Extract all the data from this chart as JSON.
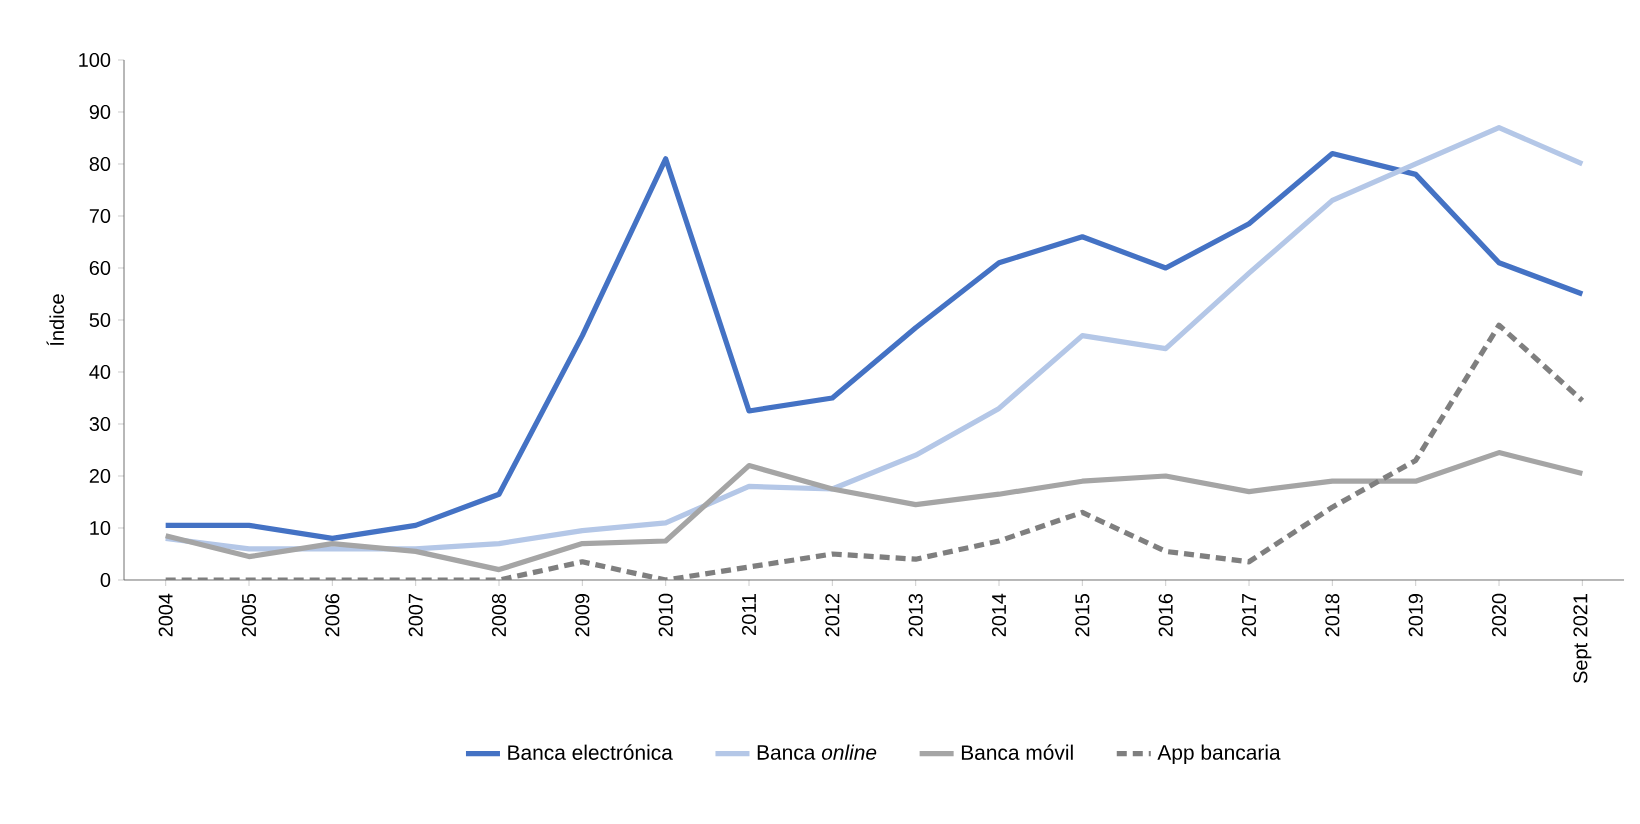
{
  "chart_data": {
    "type": "line",
    "ylabel": "Índice",
    "categories": [
      "2004",
      "2005",
      "2006",
      "2007",
      "2008",
      "2009",
      "2010",
      "2011",
      "2012",
      "2013",
      "2014",
      "2015",
      "2016",
      "2017",
      "2018",
      "2019",
      "2020",
      "Sept 2021"
    ],
    "series": [
      {
        "name": "Banca electrónica",
        "color": "#4472c4",
        "line_style": "solid",
        "values": [
          10.5,
          10.5,
          8,
          10.5,
          16.5,
          47,
          81,
          32.5,
          35,
          48.5,
          61,
          66,
          60,
          68.5,
          82,
          78,
          61,
          55
        ]
      },
      {
        "name": "Banca *online*",
        "color": "#b4c7e7",
        "line_style": "solid",
        "values": [
          8,
          6,
          6,
          6,
          7,
          9.5,
          11,
          18,
          17.5,
          24,
          33,
          47,
          44.5,
          59,
          73,
          80,
          87,
          80
        ]
      },
      {
        "name": "Banca móvil",
        "color": "#a5a5a5",
        "line_style": "solid",
        "values": [
          8.5,
          4.5,
          7,
          5.5,
          2,
          7,
          7.5,
          22,
          17.5,
          14.5,
          16.5,
          19,
          20,
          17,
          19,
          19,
          24.5,
          20.5
        ]
      },
      {
        "name": "App bancaria",
        "color": "#7f7f7f",
        "line_style": "dashed",
        "values": [
          0,
          0,
          0,
          0,
          0,
          3.5,
          0,
          2.5,
          5,
          4,
          7.5,
          13,
          5.5,
          3.5,
          14,
          23,
          49,
          34.5
        ]
      }
    ],
    "ylim": [
      0,
      100
    ],
    "yticks": [
      0,
      10,
      20,
      30,
      40,
      50,
      60,
      70,
      80,
      90,
      100
    ],
    "grid": false,
    "legend": "bottom",
    "marker": "none"
  }
}
